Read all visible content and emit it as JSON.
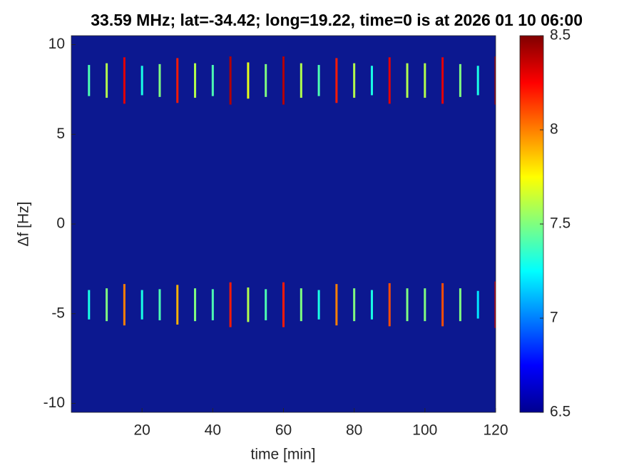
{
  "chart_data": {
    "type": "heatmap",
    "title": "33.59 MHz;  lat=-34.42; long=19.22, time=0 is at 2026 01 10 06:00",
    "xlabel": "time [min]",
    "ylabel": "Δf [Hz]",
    "x": [
      5,
      10,
      15,
      20,
      25,
      30,
      35,
      40,
      45,
      50,
      55,
      60,
      65,
      70,
      75,
      80,
      85,
      90,
      95,
      100,
      105,
      110,
      115,
      120
    ],
    "y": [
      8,
      -4.5
    ],
    "values": [
      [
        7.4,
        7.6,
        8.3,
        7.3,
        7.5,
        8.2,
        7.6,
        7.4,
        8.4,
        7.7,
        7.5,
        8.4,
        7.6,
        7.4,
        8.2,
        7.6,
        7.3,
        8.3,
        7.6,
        7.6,
        8.3,
        7.5,
        7.3,
        8.4
      ],
      [
        7.3,
        7.5,
        8.0,
        7.3,
        7.4,
        7.9,
        7.5,
        7.4,
        8.2,
        7.6,
        7.4,
        8.2,
        7.5,
        7.3,
        8.0,
        7.5,
        7.3,
        8.1,
        7.5,
        7.5,
        8.1,
        7.5,
        7.2,
        8.3
      ]
    ],
    "xlim": [
      0,
      120
    ],
    "xticks": [
      20,
      40,
      60,
      80,
      100,
      120
    ],
    "ylim": [
      -10.5,
      10.5
    ],
    "yticks": [
      -10,
      -5,
      0,
      5,
      10
    ],
    "colormap": "jet",
    "clim": [
      6.5,
      8.5
    ],
    "cticks": [
      6.5,
      7,
      7.5,
      8,
      8.5
    ]
  }
}
